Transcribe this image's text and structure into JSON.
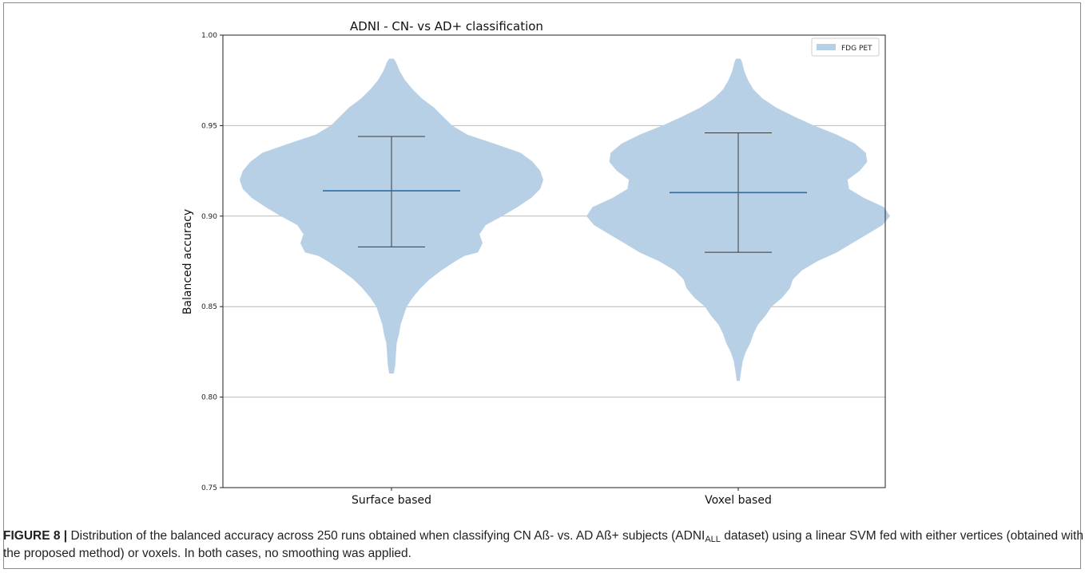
{
  "chart_data": {
    "type": "violin",
    "title": "ADNI - CN- vs AD+ classification",
    "xlabel": "",
    "ylabel": "Balanced accuracy",
    "ylim": [
      0.75,
      1.0
    ],
    "yticks": [
      "0.75",
      "0.80",
      "0.85",
      "0.90",
      "0.95",
      "1.00"
    ],
    "grid": "horizontal",
    "categories": [
      "Surface based",
      "Voxel based"
    ],
    "legend": {
      "position": "top-right",
      "entries": [
        "FDG PET"
      ]
    },
    "colors": {
      "violin": "#b8d0e6",
      "median": "#2a6fa8",
      "whisker": "#3a3a3a",
      "grid": "#b9b9b9"
    },
    "series": [
      {
        "name": "FDG PET",
        "violins": [
          {
            "category": "Surface based",
            "min": 0.813,
            "max": 0.987,
            "median": 0.914,
            "whisker_low": 0.883,
            "whisker_high": 0.944,
            "density": [
              [
                0.813,
                0.015
              ],
              [
                0.818,
                0.025
              ],
              [
                0.825,
                0.03
              ],
              [
                0.83,
                0.035
              ],
              [
                0.835,
                0.05
              ],
              [
                0.84,
                0.06
              ],
              [
                0.845,
                0.08
              ],
              [
                0.85,
                0.1
              ],
              [
                0.855,
                0.14
              ],
              [
                0.86,
                0.19
              ],
              [
                0.865,
                0.25
              ],
              [
                0.87,
                0.33
              ],
              [
                0.875,
                0.42
              ],
              [
                0.878,
                0.48
              ],
              [
                0.88,
                0.57
              ],
              [
                0.885,
                0.6
              ],
              [
                0.89,
                0.58
              ],
              [
                0.895,
                0.62
              ],
              [
                0.9,
                0.73
              ],
              [
                0.905,
                0.83
              ],
              [
                0.91,
                0.92
              ],
              [
                0.915,
                0.98
              ],
              [
                0.92,
                1.0
              ],
              [
                0.925,
                0.98
              ],
              [
                0.93,
                0.93
              ],
              [
                0.935,
                0.85
              ],
              [
                0.94,
                0.68
              ],
              [
                0.945,
                0.5
              ],
              [
                0.95,
                0.4
              ],
              [
                0.955,
                0.34
              ],
              [
                0.96,
                0.28
              ],
              [
                0.965,
                0.2
              ],
              [
                0.97,
                0.14
              ],
              [
                0.975,
                0.09
              ],
              [
                0.98,
                0.055
              ],
              [
                0.985,
                0.03
              ],
              [
                0.987,
                0.015
              ]
            ]
          },
          {
            "category": "Voxel based",
            "min": 0.809,
            "max": 0.987,
            "median": 0.913,
            "whisker_low": 0.88,
            "whisker_high": 0.946,
            "density": [
              [
                0.809,
                0.01
              ],
              [
                0.815,
                0.02
              ],
              [
                0.82,
                0.03
              ],
              [
                0.825,
                0.05
              ],
              [
                0.83,
                0.08
              ],
              [
                0.835,
                0.1
              ],
              [
                0.84,
                0.13
              ],
              [
                0.845,
                0.18
              ],
              [
                0.85,
                0.22
              ],
              [
                0.855,
                0.29
              ],
              [
                0.86,
                0.34
              ],
              [
                0.865,
                0.36
              ],
              [
                0.87,
                0.42
              ],
              [
                0.875,
                0.52
              ],
              [
                0.88,
                0.65
              ],
              [
                0.885,
                0.75
              ],
              [
                0.89,
                0.85
              ],
              [
                0.895,
                0.95
              ],
              [
                0.9,
                1.0
              ],
              [
                0.905,
                0.96
              ],
              [
                0.91,
                0.83
              ],
              [
                0.915,
                0.73
              ],
              [
                0.92,
                0.72
              ],
              [
                0.925,
                0.8
              ],
              [
                0.93,
                0.85
              ],
              [
                0.935,
                0.84
              ],
              [
                0.94,
                0.77
              ],
              [
                0.945,
                0.65
              ],
              [
                0.95,
                0.5
              ],
              [
                0.955,
                0.37
              ],
              [
                0.96,
                0.25
              ],
              [
                0.965,
                0.16
              ],
              [
                0.97,
                0.1
              ],
              [
                0.975,
                0.065
              ],
              [
                0.98,
                0.04
              ],
              [
                0.985,
                0.025
              ],
              [
                0.987,
                0.015
              ]
            ]
          }
        ]
      }
    ]
  },
  "caption": {
    "label": "FIGURE 8 |",
    "text_before": " Distribution of the balanced accuracy across 250 runs obtained when classifying CN Aß- vs. AD Aß+ subjects (ADNI",
    "subscript": "ALL",
    "text_after": " dataset) using a linear SVM fed with either vertices (obtained with the proposed method) or voxels. In both cases, no smoothing was applied."
  }
}
